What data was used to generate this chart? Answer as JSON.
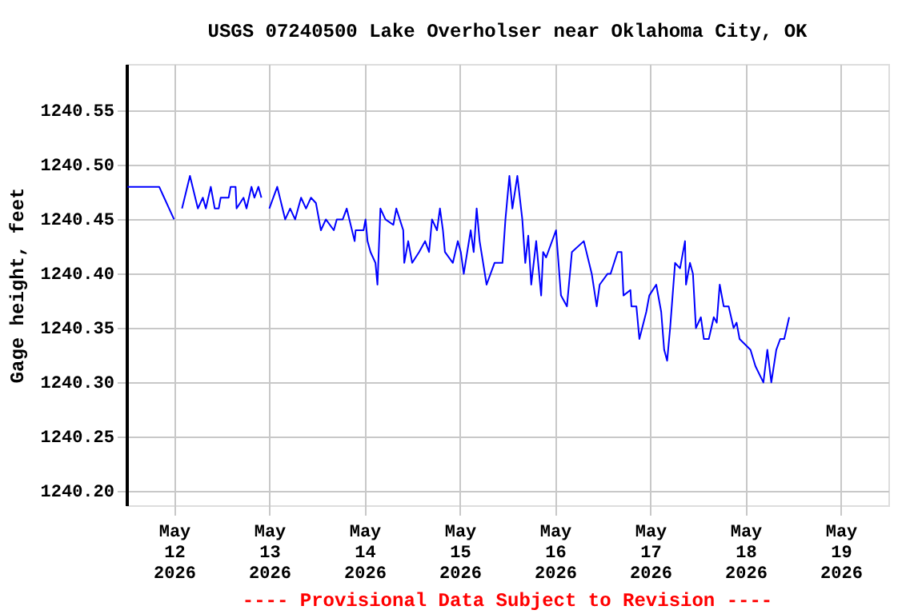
{
  "chart_data": {
    "type": "line",
    "title": "USGS 07240500 Lake Overholser near Oklahoma City, OK",
    "ylabel": "Gage height, feet",
    "annotations": [
      "---- Provisional Data Subject to Revision ----"
    ],
    "color": "#0000ff",
    "grid": true,
    "xlim": [
      "2026-05-11T12:00",
      "2026-05-19T12:00"
    ],
    "xticks": [
      {
        "value": "2026-05-12T00:00",
        "label": "May 12 2026"
      },
      {
        "value": "2026-05-13T00:00",
        "label": "May 13 2026"
      },
      {
        "value": "2026-05-14T00:00",
        "label": "May 14 2026"
      },
      {
        "value": "2026-05-15T00:00",
        "label": "May 15 2026"
      },
      {
        "value": "2026-05-16T00:00",
        "label": "May 16 2026"
      },
      {
        "value": "2026-05-17T00:00",
        "label": "May 17 2026"
      },
      {
        "value": "2026-05-18T00:00",
        "label": "May 18 2026"
      },
      {
        "value": "2026-05-19T00:00",
        "label": "May 19 2026"
      }
    ],
    "ylim": [
      1240.187,
      1240.593
    ],
    "yticks": [
      {
        "value": 1240.2,
        "label": "1240.20"
      },
      {
        "value": 1240.25,
        "label": "1240.25"
      },
      {
        "value": 1240.3,
        "label": "1240.30"
      },
      {
        "value": 1240.35,
        "label": "1240.35"
      },
      {
        "value": 1240.4,
        "label": "1240.40"
      },
      {
        "value": 1240.45,
        "label": "1240.45"
      },
      {
        "value": 1240.5,
        "label": "1240.50"
      },
      {
        "value": 1240.55,
        "label": "1240.55"
      }
    ],
    "x": [
      "2026-05-11T12:15",
      "2026-05-11T20:15",
      "2026-05-11T21:30",
      "2026-05-11T22:45",
      "2026-05-12T00:00",
      "2026-05-12T00:45",
      "2026-05-12T02:00",
      "2026-05-12T04:00",
      "2026-05-12T06:00",
      "2026-05-12T07:15",
      "2026-05-12T08:00",
      "2026-05-12T09:15",
      "2026-05-12T10:15",
      "2026-05-12T11:15",
      "2026-05-12T11:45",
      "2026-05-12T13:45",
      "2026-05-12T14:15",
      "2026-05-12T15:30",
      "2026-05-12T15:45",
      "2026-05-12T17:30",
      "2026-05-12T18:15",
      "2026-05-12T19:30",
      "2026-05-12T20:15",
      "2026-05-12T21:15",
      "2026-05-12T22:00",
      "2026-05-12T22:45",
      "2026-05-13T00:00",
      "2026-05-13T02:00",
      "2026-05-13T04:00",
      "2026-05-13T05:15",
      "2026-05-13T06:30",
      "2026-05-13T08:00",
      "2026-05-13T09:15",
      "2026-05-13T10:30",
      "2026-05-13T11:45",
      "2026-05-13T13:00",
      "2026-05-13T14:15",
      "2026-05-13T16:15",
      "2026-05-13T17:00",
      "2026-05-13T18:30",
      "2026-05-13T19:30",
      "2026-05-13T21:30",
      "2026-05-13T21:45",
      "2026-05-13T23:45",
      "2026-05-14T00:15",
      "2026-05-14T00:45",
      "2026-05-14T01:30",
      "2026-05-14T02:45",
      "2026-05-14T03:15",
      "2026-05-14T04:00",
      "2026-05-14T05:15",
      "2026-05-14T07:15",
      "2026-05-14T08:00",
      "2026-05-14T09:45",
      "2026-05-14T10:00",
      "2026-05-14T11:00",
      "2026-05-14T12:00",
      "2026-05-14T13:45",
      "2026-05-14T15:15",
      "2026-05-14T16:15",
      "2026-05-14T17:00",
      "2026-05-14T18:15",
      "2026-05-14T19:00",
      "2026-05-14T19:45",
      "2026-05-14T20:15",
      "2026-05-14T22:15",
      "2026-05-14T23:30",
      "2026-05-15T00:15",
      "2026-05-15T01:00",
      "2026-05-15T02:45",
      "2026-05-15T03:30",
      "2026-05-15T04:15",
      "2026-05-15T05:00",
      "2026-05-15T06:45",
      "2026-05-15T08:45",
      "2026-05-15T10:45",
      "2026-05-15T11:30",
      "2026-05-15T12:30",
      "2026-05-15T13:15",
      "2026-05-15T14:30",
      "2026-05-15T15:45",
      "2026-05-15T16:30",
      "2026-05-15T17:15",
      "2026-05-15T18:00",
      "2026-05-15T19:15",
      "2026-05-15T20:30",
      "2026-05-15T21:00",
      "2026-05-15T21:45",
      "2026-05-16T00:15",
      "2026-05-16T01:30",
      "2026-05-16T03:00",
      "2026-05-16T04:15",
      "2026-05-16T07:15",
      "2026-05-16T09:15",
      "2026-05-16T10:30",
      "2026-05-16T11:15",
      "2026-05-16T13:15",
      "2026-05-16T14:00",
      "2026-05-16T15:45",
      "2026-05-16T16:45",
      "2026-05-16T17:15",
      "2026-05-16T19:00",
      "2026-05-16T19:15",
      "2026-05-16T20:30",
      "2026-05-16T21:15",
      "2026-05-16T23:00",
      "2026-05-16T23:45",
      "2026-05-17T01:30",
      "2026-05-17T02:45",
      "2026-05-17T03:30",
      "2026-05-17T04:15",
      "2026-05-17T05:00",
      "2026-05-17T06:15",
      "2026-05-17T07:30",
      "2026-05-17T08:45",
      "2026-05-17T09:00",
      "2026-05-17T10:00",
      "2026-05-17T10:45",
      "2026-05-17T11:30",
      "2026-05-17T12:45",
      "2026-05-17T13:30",
      "2026-05-17T14:45",
      "2026-05-17T16:00",
      "2026-05-17T16:45",
      "2026-05-17T17:30",
      "2026-05-17T18:30",
      "2026-05-17T19:45",
      "2026-05-17T21:00",
      "2026-05-17T21:45",
      "2026-05-17T22:30",
      "2026-05-18T01:15",
      "2026-05-18T02:30",
      "2026-05-18T04:30",
      "2026-05-18T05:30",
      "2026-05-18T06:30",
      "2026-05-18T07:45",
      "2026-05-18T08:45",
      "2026-05-18T09:45",
      "2026-05-18T11:00"
    ],
    "values": [
      1240.48,
      1240.48,
      1240.47,
      1240.46,
      1240.45,
      null,
      1240.46,
      1240.49,
      1240.46,
      1240.47,
      1240.46,
      1240.48,
      1240.46,
      1240.46,
      1240.47,
      1240.47,
      1240.48,
      1240.48,
      1240.46,
      1240.47,
      1240.46,
      1240.48,
      1240.47,
      1240.48,
      1240.47,
      null,
      1240.46,
      1240.48,
      1240.45,
      1240.46,
      1240.45,
      1240.47,
      1240.46,
      1240.47,
      1240.465,
      1240.44,
      1240.45,
      1240.44,
      1240.45,
      1240.45,
      1240.46,
      1240.43,
      1240.44,
      1240.44,
      1240.45,
      1240.43,
      1240.42,
      1240.41,
      1240.39,
      1240.46,
      1240.45,
      1240.445,
      1240.46,
      1240.44,
      1240.41,
      1240.43,
      1240.41,
      1240.42,
      1240.43,
      1240.42,
      1240.45,
      1240.44,
      1240.46,
      1240.44,
      1240.42,
      1240.41,
      1240.43,
      1240.42,
      1240.4,
      1240.44,
      1240.42,
      1240.46,
      1240.43,
      1240.39,
      1240.41,
      1240.41,
      1240.45,
      1240.49,
      1240.46,
      1240.49,
      1240.45,
      1240.41,
      1240.435,
      1240.39,
      1240.43,
      1240.38,
      1240.42,
      1240.415,
      1240.44,
      1240.38,
      1240.37,
      1240.42,
      1240.43,
      1240.4,
      1240.37,
      1240.39,
      1240.4,
      1240.4,
      1240.42,
      1240.42,
      1240.38,
      1240.385,
      1240.37,
      1240.37,
      1240.34,
      1240.365,
      1240.38,
      1240.39,
      1240.365,
      1240.33,
      1240.32,
      1240.35,
      1240.41,
      1240.405,
      1240.43,
      1240.39,
      1240.41,
      1240.4,
      1240.35,
      1240.36,
      1240.34,
      1240.34,
      1240.36,
      1240.355,
      1240.39,
      1240.37,
      1240.37,
      1240.35,
      1240.355,
      1240.34,
      1240.33,
      1240.315,
      1240.3,
      1240.33,
      1240.3,
      1240.33,
      1240.34,
      1240.34,
      1240.36
    ]
  }
}
